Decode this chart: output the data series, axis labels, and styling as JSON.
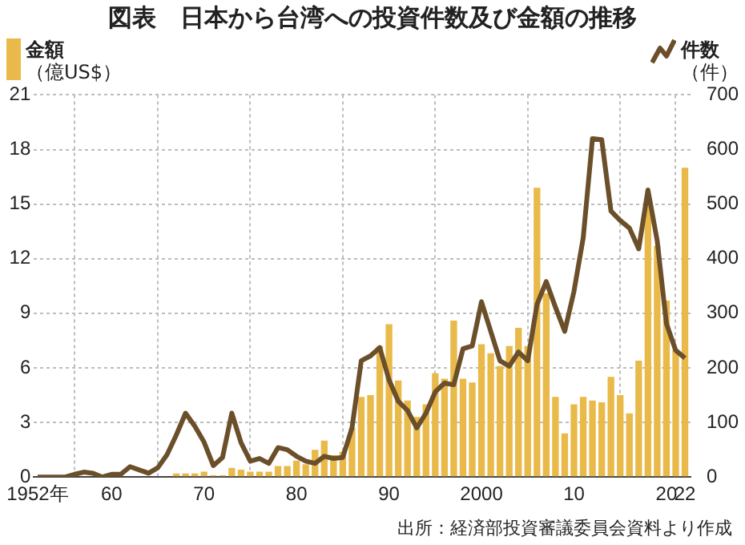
{
  "chart_data": {
    "type": "bar",
    "title": "図表　日本から台湾への投資件数及び金額の推移",
    "ylabel": "（億US$）",
    "y2label": "（件）",
    "x": [
      1952,
      1953,
      1954,
      1955,
      1956,
      1957,
      1958,
      1959,
      1960,
      1961,
      1962,
      1963,
      1964,
      1965,
      1966,
      1967,
      1968,
      1969,
      1970,
      1971,
      1972,
      1973,
      1974,
      1975,
      1976,
      1977,
      1978,
      1979,
      1980,
      1981,
      1982,
      1983,
      1984,
      1985,
      1986,
      1987,
      1988,
      1989,
      1990,
      1991,
      1992,
      1993,
      1994,
      1995,
      1996,
      1997,
      1998,
      1999,
      2000,
      2001,
      2002,
      2003,
      2004,
      2005,
      2006,
      2007,
      2008,
      2009,
      2010,
      2011,
      2012,
      2013,
      2014,
      2015,
      2016,
      2017,
      2018,
      2019,
      2020,
      2021,
      2022
    ],
    "series": [
      {
        "name": "金額",
        "color": "#e9b949",
        "values": [
          0,
          0,
          0,
          0,
          0,
          0,
          0,
          0,
          0,
          0,
          0,
          0,
          0,
          0,
          0,
          0.2,
          0.2,
          0.2,
          0.3,
          0.1,
          0.1,
          0.5,
          0.4,
          0.3,
          0.3,
          0.3,
          0.6,
          0.6,
          0.9,
          0.7,
          1.5,
          2.0,
          1.2,
          1.4,
          2.7,
          4.4,
          4.5,
          7.2,
          8.4,
          5.3,
          4.2,
          3.3,
          4.0,
          5.7,
          5.4,
          8.6,
          5.4,
          5.2,
          7.3,
          6.8,
          6.1,
          7.2,
          8.2,
          7.2,
          15.9,
          10.1,
          4.4,
          2.4,
          4.0,
          4.4,
          4.2,
          4.1,
          5.5,
          4.5,
          3.5,
          6.4,
          15.0,
          12.7,
          9.7,
          7.0,
          17.0
        ]
      },
      {
        "name": "件数",
        "type": "line",
        "axis": "y2",
        "color": "#6b4f2a",
        "values": [
          0,
          0,
          0,
          0,
          5,
          9,
          7,
          0,
          5,
          5,
          19,
          13,
          7,
          17,
          41,
          77,
          117,
          93,
          64,
          21,
          36,
          117,
          63,
          29,
          34,
          25,
          54,
          50,
          38,
          29,
          25,
          38,
          34,
          36,
          90,
          213,
          222,
          237,
          178,
          139,
          122,
          90,
          117,
          156,
          172,
          169,
          235,
          240,
          321,
          267,
          213,
          203,
          229,
          213,
          316,
          358,
          311,
          267,
          340,
          438,
          620,
          618,
          487,
          470,
          456,
          418,
          526,
          433,
          281,
          232,
          218
        ]
      }
    ],
    "xlim": [
      1951.6,
      2022.6
    ],
    "xticks": [
      {
        "value": 1952,
        "label": "1952年"
      },
      {
        "value": 1960,
        "label": "60"
      },
      {
        "value": 1970,
        "label": "70"
      },
      {
        "value": 1980,
        "label": "80"
      },
      {
        "value": 1990,
        "label": "90"
      },
      2000,
      {
        "value": 2010,
        "label": "10"
      },
      {
        "value": 2020,
        "label": "20"
      },
      {
        "value": 2022,
        "label": "22"
      }
    ],
    "ylim": [
      0,
      21
    ],
    "yticks": [
      0,
      3,
      6,
      9,
      12,
      15,
      18,
      21
    ],
    "y2lim": [
      0,
      700
    ],
    "y2ticks": [
      0,
      100,
      200,
      300,
      400,
      500,
      600,
      700
    ],
    "grid": true,
    "legend": "top",
    "marker": "none",
    "annotations": [
      "出所：経済部投資審議委員会資料より作成"
    ]
  }
}
